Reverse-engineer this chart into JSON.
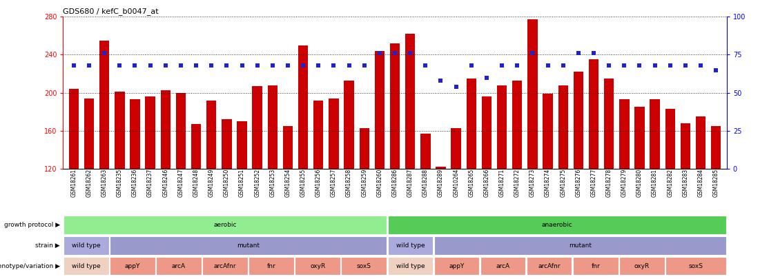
{
  "title": "GDS680 / kefC_b0047_at",
  "samples": [
    "GSM18261",
    "GSM18262",
    "GSM18263",
    "GSM18235",
    "GSM18236",
    "GSM18237",
    "GSM18246",
    "GSM18247",
    "GSM18248",
    "GSM18249",
    "GSM18250",
    "GSM18251",
    "GSM18252",
    "GSM18253",
    "GSM18254",
    "GSM18255",
    "GSM18256",
    "GSM18257",
    "GSM18258",
    "GSM18259",
    "GSM18260",
    "GSM18286",
    "GSM18287",
    "GSM18288",
    "GSM18289",
    "GSM10264",
    "GSM18265",
    "GSM18266",
    "GSM18271",
    "GSM18272",
    "GSM18273",
    "GSM18274",
    "GSM18275",
    "GSM18276",
    "GSM18277",
    "GSM18278",
    "GSM18279",
    "GSM18280",
    "GSM18281",
    "GSM18282",
    "GSM18283",
    "GSM18284",
    "GSM18285"
  ],
  "counts": [
    204,
    194,
    255,
    201,
    193,
    196,
    203,
    200,
    167,
    192,
    172,
    170,
    207,
    208,
    165,
    250,
    192,
    194,
    213,
    163,
    244,
    252,
    262,
    157,
    122,
    163,
    215,
    196,
    208,
    213,
    277,
    199,
    208,
    222,
    235,
    215,
    193,
    185,
    193,
    183,
    168,
    175,
    165
  ],
  "percentiles": [
    68,
    68,
    76,
    68,
    68,
    68,
    68,
    68,
    68,
    68,
    68,
    68,
    68,
    68,
    68,
    68,
    68,
    68,
    68,
    68,
    76,
    76,
    76,
    68,
    58,
    54,
    68,
    60,
    68,
    68,
    76,
    68,
    68,
    76,
    76,
    68,
    68,
    68,
    68,
    68,
    68,
    68,
    65
  ],
  "ylim_left": [
    120,
    280
  ],
  "ylim_right": [
    0,
    100
  ],
  "yticks_left": [
    120,
    160,
    200,
    240,
    280
  ],
  "yticks_right": [
    0,
    25,
    50,
    75,
    100
  ],
  "bar_color": "#cc0000",
  "dot_color": "#2222cc",
  "growth_protocol_aerobic_color": "#90ee90",
  "growth_protocol_anaerobic_color": "#55cc55",
  "strain_wt_color": "#aaaadd",
  "strain_mut_color": "#9999cc",
  "geno_wt_color": "#f0d0c0",
  "geno_mut_color": "#ee9988",
  "background_color": "#ffffff",
  "legend_count_color": "#cc0000",
  "legend_percentile_color": "#2222cc"
}
